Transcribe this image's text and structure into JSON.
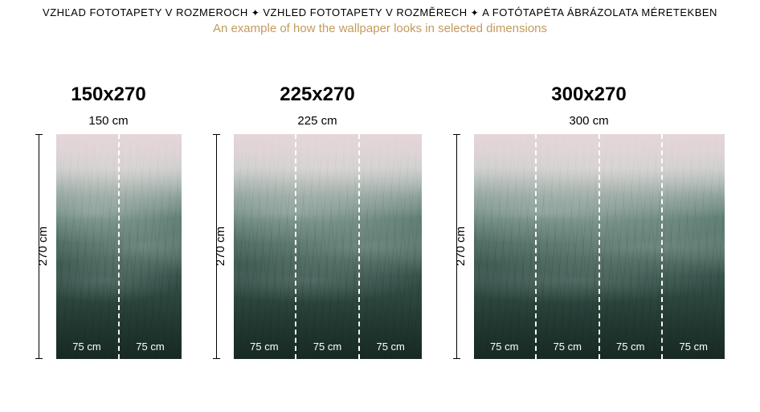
{
  "header": {
    "text_sk": "VZHĽAD FOTOTAPETY V ROZMEROCH",
    "text_cz": "VZHLED FOTOTAPETY V ROZMĚRECH",
    "text_hu": "A FOTÓTAPÉTA ÁBRÁZOLATA MÉRETEKBEN",
    "subtitle": "An example of how the wallpaper looks in selected dimensions"
  },
  "panels": [
    {
      "title": "150x270",
      "width_label": "150 cm",
      "height_label": "270 cm",
      "strips": [
        "75 cm",
        "75 cm"
      ],
      "css_class": "w150"
    },
    {
      "title": "225x270",
      "width_label": "225 cm",
      "height_label": "270 cm",
      "strips": [
        "75 cm",
        "75 cm",
        "75 cm"
      ],
      "css_class": "w225"
    },
    {
      "title": "300x270",
      "width_label": "300 cm",
      "height_label": "270 cm",
      "strips": [
        "75 cm",
        "75 cm",
        "75 cm",
        "75 cm"
      ],
      "css_class": "w300"
    }
  ],
  "colors": {
    "subtitle_color": "#c39a5c",
    "text_color": "#000000",
    "strip_label_color": "#ffffff",
    "strip_divider": "#ffffff"
  }
}
